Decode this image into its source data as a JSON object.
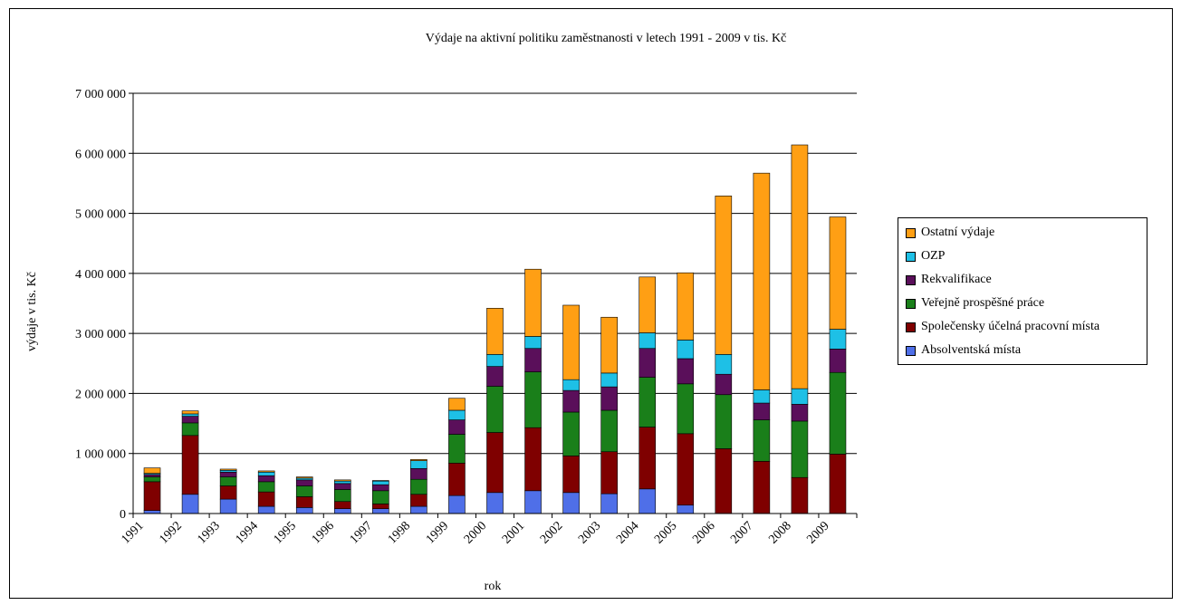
{
  "chart_data": {
    "type": "bar",
    "stacked": true,
    "title": "Výdaje na aktivní politiku zaměstnanosti v letech 1991 - 2009 v tis. Kč",
    "xlabel": "rok",
    "ylabel": "výdaje v tis. Kč",
    "ylim": [
      0,
      7000000
    ],
    "yticks": [
      0,
      1000000,
      2000000,
      3000000,
      4000000,
      5000000,
      6000000,
      7000000
    ],
    "ytick_labels": [
      "0",
      "1 000 000",
      "2 000 000",
      "3 000 000",
      "4 000 000",
      "5 000 000",
      "6 000 000",
      "7 000 000"
    ],
    "grid": true,
    "legend_position": "right",
    "categories": [
      "1991",
      "1992",
      "1993",
      "1994",
      "1995",
      "1996",
      "1997",
      "1998",
      "1999",
      "2000",
      "2001",
      "2002",
      "2003",
      "2004",
      "2005",
      "2006",
      "2007",
      "2008",
      "2009"
    ],
    "series": [
      {
        "name": "Absolventská místa",
        "color": "#4f6fe8",
        "values": [
          50000,
          320000,
          240000,
          120000,
          100000,
          80000,
          80000,
          120000,
          300000,
          350000,
          380000,
          350000,
          330000,
          410000,
          140000,
          0,
          0,
          0,
          0
        ]
      },
      {
        "name": "Společensky účelná pracovní místa",
        "color": "#7f0000",
        "values": [
          480000,
          980000,
          220000,
          240000,
          180000,
          120000,
          80000,
          200000,
          540000,
          1000000,
          1050000,
          610000,
          700000,
          1030000,
          1190000,
          1080000,
          870000,
          600000,
          990000
        ]
      },
      {
        "name": "Veřejně prospěšné práce",
        "color": "#1a7f1a",
        "values": [
          80000,
          210000,
          150000,
          170000,
          180000,
          200000,
          220000,
          250000,
          480000,
          770000,
          930000,
          730000,
          690000,
          830000,
          830000,
          900000,
          690000,
          940000,
          1360000
        ]
      },
      {
        "name": "Rekvalifikace",
        "color": "#5a0f5a",
        "values": [
          40000,
          110000,
          80000,
          100000,
          100000,
          100000,
          100000,
          180000,
          240000,
          330000,
          390000,
          360000,
          390000,
          480000,
          420000,
          340000,
          280000,
          280000,
          390000
        ]
      },
      {
        "name": "OZP",
        "color": "#1ec0e6",
        "values": [
          20000,
          40000,
          30000,
          60000,
          30000,
          40000,
          60000,
          130000,
          160000,
          200000,
          200000,
          180000,
          230000,
          260000,
          310000,
          330000,
          220000,
          260000,
          330000
        ]
      },
      {
        "name": "Ostatní výdaje",
        "color": "#ff9f14",
        "values": [
          90000,
          50000,
          20000,
          20000,
          20000,
          20000,
          10000,
          20000,
          200000,
          770000,
          1120000,
          1240000,
          930000,
          930000,
          1120000,
          2640000,
          3610000,
          4060000,
          1870000
        ]
      }
    ]
  }
}
